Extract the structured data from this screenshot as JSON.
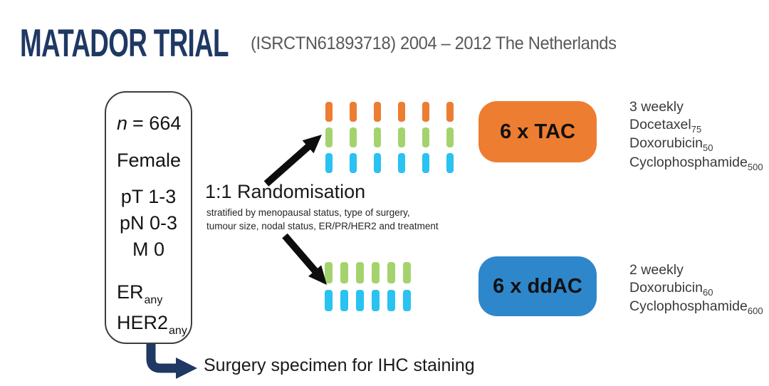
{
  "header": {
    "title": "MATADOR TRIAL",
    "subtitle": "(ISRCTN61893718) 2004 – 2012 The Netherlands"
  },
  "cohort_box": {
    "n_symbol": "n",
    "n_value": "= 664",
    "sex": "Female",
    "stage_lines": [
      "pT 1-3",
      "pN 0-3",
      "M 0"
    ],
    "markers": [
      {
        "base": "ER",
        "sub": "any"
      },
      {
        "base": "HER2",
        "sub": "any"
      }
    ]
  },
  "randomisation": {
    "title": "1:1 Randomisation",
    "strata_line1": "stratified by menopausal status, type of surgery,",
    "strata_line2": "tumour size, nodal status, ER/PR/HER2 and treatment"
  },
  "arms": [
    {
      "label": "6 x TAC",
      "box_color": "#ED7D31",
      "schedule": "3 weekly",
      "drugs": [
        {
          "name": "Docetaxel",
          "dose": "75"
        },
        {
          "name": "Doxorubicin",
          "dose": "50"
        },
        {
          "name": "Cyclophosphamide",
          "dose": "500"
        }
      ],
      "ticks_per_row": 6,
      "tick_row_colors": [
        "#ED7D31",
        "#A4D36E",
        "#29C2F1"
      ]
    },
    {
      "label": "6 x ddAC",
      "box_color": "#2E87CB",
      "schedule": "2 weekly",
      "drugs": [
        {
          "name": "Doxorubicin",
          "dose": "60"
        },
        {
          "name": "Cyclophosphamide",
          "dose": "600"
        }
      ],
      "ticks_per_row": 6,
      "tick_row_colors": [
        "#A4D36E",
        "#29C2F1"
      ]
    }
  ],
  "footer": {
    "surgery_note": "Surgery specimen for IHC staining"
  },
  "colors": {
    "title_navy": "#1F3864",
    "subtitle_gray": "#595959",
    "arrow_black": "#0d0d0d",
    "elbow_arrow_navy": "#1F3864",
    "tick_orange": "#ED7D31",
    "tick_green": "#A4D36E",
    "tick_cyan": "#29C2F1"
  }
}
